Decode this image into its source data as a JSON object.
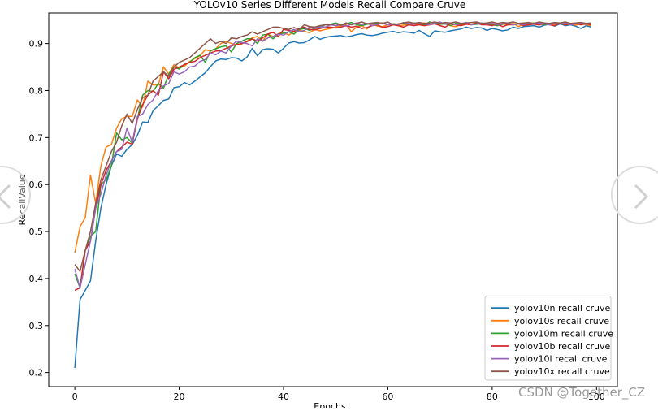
{
  "chart_data": {
    "type": "line",
    "title": "YOLOv10 Series Different Models Recall Compare Cruve",
    "xlabel": "Epochs",
    "ylabel": "RecallValue",
    "xlim": [
      -5,
      104
    ],
    "ylim": [
      0.17,
      0.965
    ],
    "x_ticks": [
      0,
      20,
      40,
      60,
      80,
      100
    ],
    "y_ticks": [
      0.2,
      0.3,
      0.4,
      0.5,
      0.6,
      0.7,
      0.8,
      0.9
    ],
    "grid": false,
    "legend_position": "lower-right",
    "x": [
      0,
      1,
      2,
      3,
      4,
      5,
      6,
      7,
      8,
      9,
      10,
      11,
      12,
      13,
      14,
      15,
      16,
      17,
      18,
      19,
      20,
      21,
      22,
      23,
      24,
      25,
      26,
      27,
      28,
      29,
      30,
      31,
      32,
      33,
      34,
      35,
      36,
      37,
      38,
      39,
      40,
      41,
      42,
      43,
      44,
      45,
      46,
      47,
      48,
      49,
      50,
      51,
      52,
      53,
      54,
      55,
      56,
      57,
      58,
      59,
      60,
      61,
      62,
      63,
      64,
      65,
      66,
      67,
      68,
      69,
      70,
      71,
      72,
      73,
      74,
      75,
      76,
      77,
      78,
      79,
      80,
      81,
      82,
      83,
      84,
      85,
      86,
      87,
      88,
      89,
      90,
      91,
      92,
      93,
      94,
      95,
      96,
      97,
      98,
      99
    ],
    "series": [
      {
        "name": "yolov10n recall cruve",
        "color": "#1f77b4",
        "values": [
          0.21,
          0.355,
          0.375,
          0.395,
          0.48,
          0.55,
          0.6,
          0.64,
          0.665,
          0.66,
          0.675,
          0.685,
          0.705,
          0.733,
          0.732,
          0.757,
          0.768,
          0.779,
          0.782,
          0.806,
          0.808,
          0.817,
          0.812,
          0.82,
          0.829,
          0.838,
          0.851,
          0.863,
          0.867,
          0.866,
          0.87,
          0.869,
          0.863,
          0.871,
          0.89,
          0.874,
          0.887,
          0.889,
          0.888,
          0.88,
          0.89,
          0.901,
          0.904,
          0.901,
          0.902,
          0.908,
          0.915,
          0.909,
          0.913,
          0.915,
          0.916,
          0.917,
          0.914,
          0.916,
          0.919,
          0.921,
          0.918,
          0.917,
          0.919,
          0.922,
          0.924,
          0.926,
          0.923,
          0.925,
          0.924,
          0.922,
          0.928,
          0.921,
          0.915,
          0.927,
          0.925,
          0.924,
          0.927,
          0.929,
          0.931,
          0.935,
          0.932,
          0.934,
          0.933,
          0.928,
          0.932,
          0.93,
          0.927,
          0.929,
          0.935,
          0.932,
          0.936,
          0.937,
          0.938,
          0.935,
          0.939,
          0.941,
          0.937,
          0.942,
          0.938,
          0.94,
          0.937,
          0.932,
          0.938,
          0.935
        ]
      },
      {
        "name": "yolov10s recall cruve",
        "color": "#ff7f0e",
        "values": [
          0.455,
          0.51,
          0.53,
          0.62,
          0.56,
          0.64,
          0.68,
          0.685,
          0.72,
          0.74,
          0.745,
          0.745,
          0.78,
          0.765,
          0.82,
          0.812,
          0.812,
          0.85,
          0.835,
          0.855,
          0.848,
          0.852,
          0.862,
          0.868,
          0.874,
          0.887,
          0.884,
          0.889,
          0.9,
          0.905,
          0.9,
          0.897,
          0.899,
          0.905,
          0.912,
          0.915,
          0.905,
          0.92,
          0.915,
          0.921,
          0.924,
          0.918,
          0.925,
          0.928,
          0.926,
          0.923,
          0.93,
          0.927,
          0.93,
          0.932,
          0.935,
          0.938,
          0.94,
          0.925,
          0.935,
          0.938,
          0.931,
          0.942,
          0.937,
          0.936,
          0.94,
          0.941,
          0.938,
          0.939,
          0.942,
          0.941,
          0.94,
          0.944,
          0.94,
          0.943,
          0.941,
          0.942,
          0.938,
          0.936,
          0.94,
          0.942,
          0.941,
          0.944,
          0.941,
          0.94,
          0.943,
          0.938,
          0.942,
          0.94,
          0.943,
          0.936,
          0.941,
          0.942,
          0.943,
          0.939,
          0.944,
          0.94,
          0.941,
          0.943,
          0.94,
          0.942,
          0.939,
          0.942,
          0.94,
          0.938
        ]
      },
      {
        "name": "yolov10m recall cruve",
        "color": "#2ca02c",
        "values": [
          0.41,
          0.38,
          0.46,
          0.49,
          0.5,
          0.6,
          0.61,
          0.64,
          0.71,
          0.695,
          0.7,
          0.688,
          0.74,
          0.79,
          0.8,
          0.798,
          0.815,
          0.805,
          0.835,
          0.85,
          0.846,
          0.856,
          0.86,
          0.87,
          0.875,
          0.86,
          0.885,
          0.889,
          0.893,
          0.895,
          0.882,
          0.9,
          0.905,
          0.91,
          0.91,
          0.9,
          0.918,
          0.92,
          0.91,
          0.92,
          0.922,
          0.925,
          0.92,
          0.93,
          0.932,
          0.928,
          0.932,
          0.935,
          0.94,
          0.941,
          0.944,
          0.94,
          0.942,
          0.945,
          0.94,
          0.938,
          0.941,
          0.943,
          0.942,
          0.944,
          0.94,
          0.942,
          0.941,
          0.943,
          0.94,
          0.944,
          0.942,
          0.94,
          0.946,
          0.943,
          0.941,
          0.942,
          0.938,
          0.943,
          0.941,
          0.944,
          0.94,
          0.941,
          0.942,
          0.944,
          0.94,
          0.938,
          0.941,
          0.944,
          0.94,
          0.942,
          0.943,
          0.94,
          0.944,
          0.942,
          0.94,
          0.941,
          0.944,
          0.943,
          0.94,
          0.942,
          0.943,
          0.94,
          0.942,
          0.94
        ]
      },
      {
        "name": "yolov10b recall cruve",
        "color": "#d62728",
        "values": [
          0.375,
          0.38,
          0.46,
          0.48,
          0.55,
          0.6,
          0.63,
          0.65,
          0.67,
          0.68,
          0.69,
          0.686,
          0.74,
          0.77,
          0.79,
          0.8,
          0.79,
          0.84,
          0.825,
          0.845,
          0.85,
          0.855,
          0.86,
          0.862,
          0.87,
          0.875,
          0.88,
          0.884,
          0.885,
          0.89,
          0.895,
          0.898,
          0.9,
          0.904,
          0.91,
          0.905,
          0.912,
          0.92,
          0.924,
          0.915,
          0.93,
          0.928,
          0.926,
          0.932,
          0.935,
          0.93,
          0.929,
          0.932,
          0.935,
          0.935,
          0.933,
          0.935,
          0.938,
          0.935,
          0.937,
          0.932,
          0.934,
          0.938,
          0.94,
          0.934,
          0.936,
          0.94,
          0.938,
          0.935,
          0.94,
          0.938,
          0.94,
          0.938,
          0.94,
          0.942,
          0.938,
          0.935,
          0.942,
          0.94,
          0.938,
          0.941,
          0.94,
          0.944,
          0.94,
          0.94,
          0.938,
          0.942,
          0.936,
          0.94,
          0.94,
          0.942,
          0.938,
          0.94,
          0.941,
          0.94,
          0.942,
          0.94,
          0.938,
          0.944,
          0.94,
          0.941,
          0.943,
          0.94,
          0.942,
          0.94
        ]
      },
      {
        "name": "yolov10l recall cruve",
        "color": "#9467bd",
        "values": [
          0.42,
          0.38,
          0.43,
          0.48,
          0.55,
          0.58,
          0.62,
          0.65,
          0.67,
          0.675,
          0.72,
          0.69,
          0.745,
          0.75,
          0.77,
          0.78,
          0.8,
          0.81,
          0.815,
          0.84,
          0.835,
          0.84,
          0.85,
          0.852,
          0.862,
          0.866,
          0.88,
          0.876,
          0.884,
          0.88,
          0.895,
          0.905,
          0.902,
          0.9,
          0.895,
          0.91,
          0.905,
          0.912,
          0.915,
          0.92,
          0.918,
          0.925,
          0.93,
          0.925,
          0.928,
          0.935,
          0.932,
          0.936,
          0.935,
          0.94,
          0.938,
          0.94,
          0.937,
          0.941,
          0.944,
          0.94,
          0.943,
          0.938,
          0.941,
          0.943,
          0.94,
          0.942,
          0.94,
          0.945,
          0.943,
          0.941,
          0.944,
          0.942,
          0.94,
          0.944,
          0.946,
          0.941,
          0.944,
          0.94,
          0.942,
          0.945,
          0.94,
          0.942,
          0.944,
          0.941,
          0.943,
          0.94,
          0.942,
          0.944,
          0.94,
          0.942,
          0.94,
          0.943,
          0.941,
          0.944,
          0.942,
          0.94,
          0.943,
          0.941,
          0.944,
          0.94,
          0.942,
          0.943,
          0.941,
          0.942
        ]
      },
      {
        "name": "yolov10x recall cruve",
        "color": "#8c564b",
        "values": [
          0.43,
          0.415,
          0.46,
          0.5,
          0.56,
          0.61,
          0.64,
          0.67,
          0.69,
          0.725,
          0.75,
          0.73,
          0.76,
          0.785,
          0.79,
          0.82,
          0.83,
          0.84,
          0.83,
          0.85,
          0.86,
          0.865,
          0.87,
          0.88,
          0.89,
          0.9,
          0.91,
          0.9,
          0.905,
          0.9,
          0.912,
          0.91,
          0.915,
          0.918,
          0.925,
          0.92,
          0.925,
          0.93,
          0.935,
          0.935,
          0.932,
          0.93,
          0.934,
          0.93,
          0.94,
          0.936,
          0.935,
          0.938,
          0.94,
          0.94,
          0.942,
          0.939,
          0.944,
          0.94,
          0.943,
          0.946,
          0.942,
          0.944,
          0.945,
          0.943,
          0.946,
          0.94,
          0.942,
          0.944,
          0.946,
          0.943,
          0.945,
          0.943,
          0.944,
          0.946,
          0.943,
          0.945,
          0.944,
          0.946,
          0.943,
          0.944,
          0.945,
          0.946,
          0.943,
          0.944,
          0.946,
          0.943,
          0.945,
          0.944,
          0.946,
          0.943,
          0.944,
          0.945,
          0.943,
          0.946,
          0.944,
          0.943,
          0.945,
          0.944,
          0.946,
          0.943,
          0.944,
          0.945,
          0.943,
          0.944
        ]
      }
    ]
  },
  "watermark": {
    "text": "CSDN @Together_CZ"
  },
  "nav": {
    "prev_icon": "chevron-left-icon",
    "next_icon": "chevron-right-icon"
  }
}
